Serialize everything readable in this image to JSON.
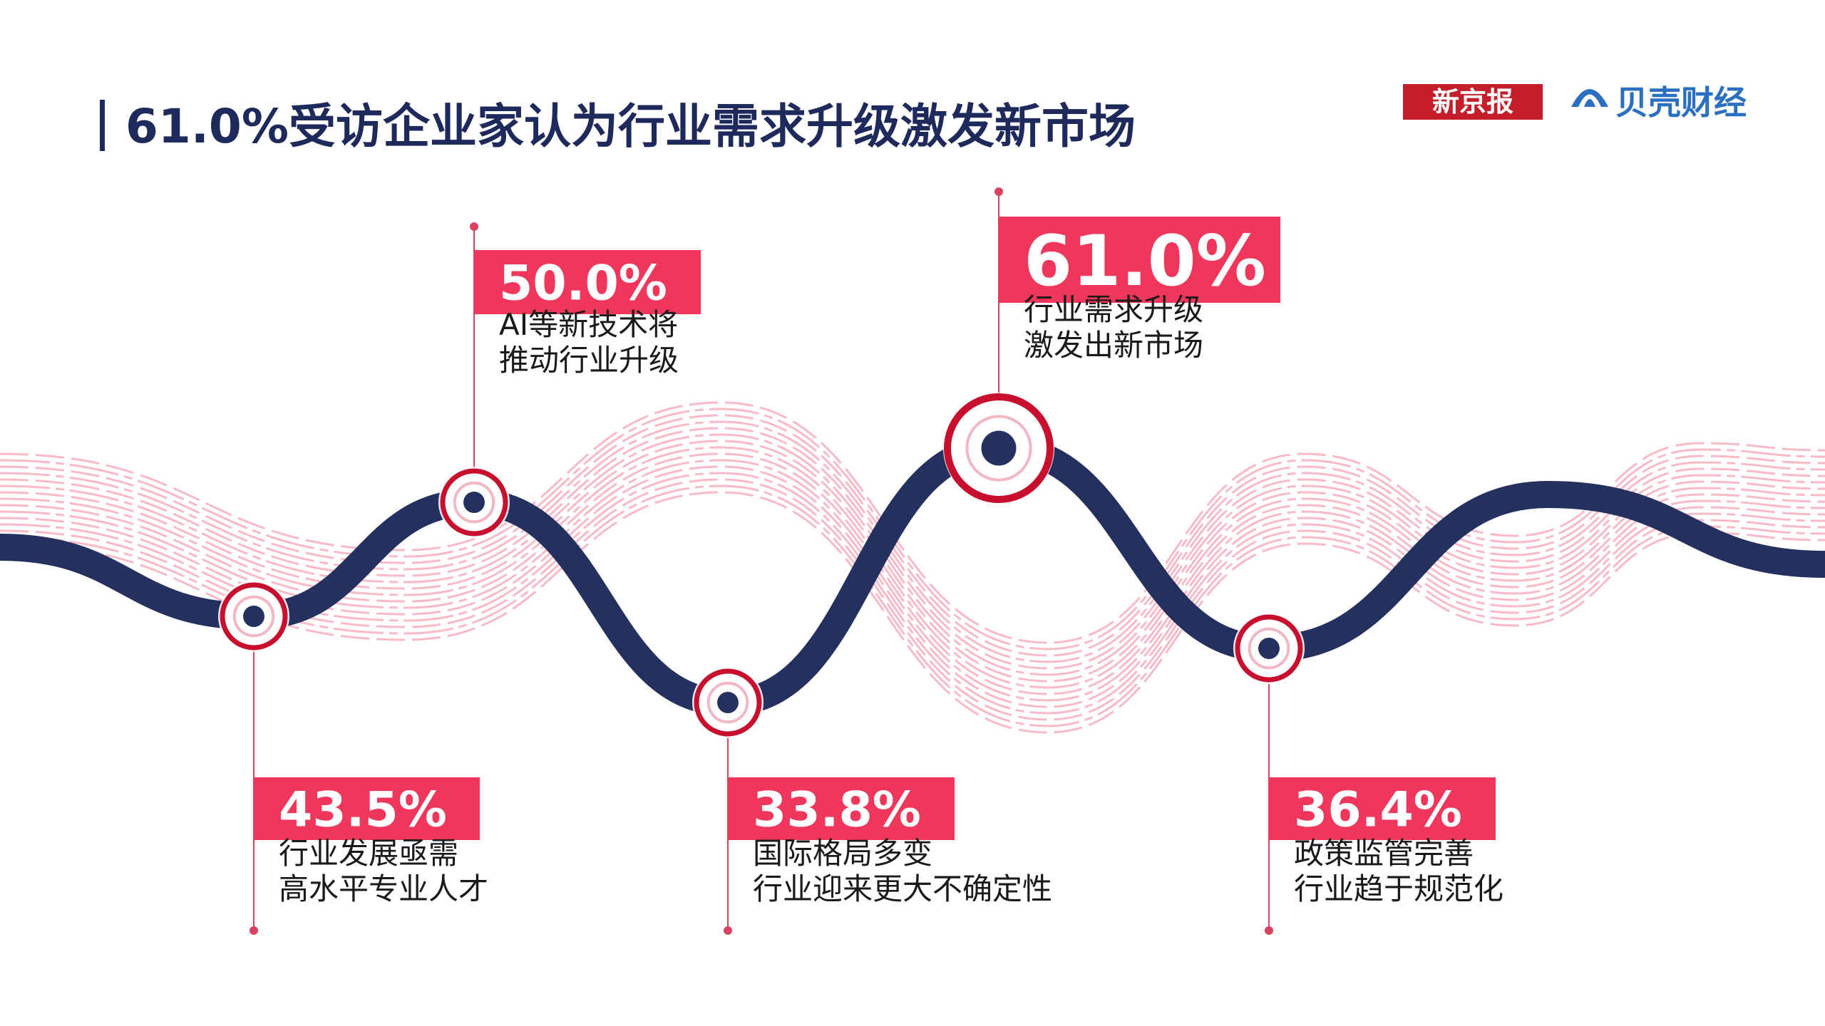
{
  "header": {
    "title": "61.0%受访企业家认为行业需求升级激发新市场",
    "brand_left": "新京报",
    "brand_right": "贝壳财经"
  },
  "items": [
    {
      "value": "43.5%",
      "lines": [
        "行业发展亟需",
        "高水平专业人才"
      ]
    },
    {
      "value": "50.0%",
      "lines": [
        "AI等新技术将",
        "推动行业升级"
      ]
    },
    {
      "value": "33.8%",
      "lines": [
        "国际格局多变",
        "行业迎来更大不确定性"
      ]
    },
    {
      "value": "61.0%",
      "lines": [
        "行业需求升级",
        "激发出新市场"
      ]
    },
    {
      "value": "36.4%",
      "lines": [
        "政策监管完善",
        "行业趋于规范化"
      ]
    }
  ]
}
